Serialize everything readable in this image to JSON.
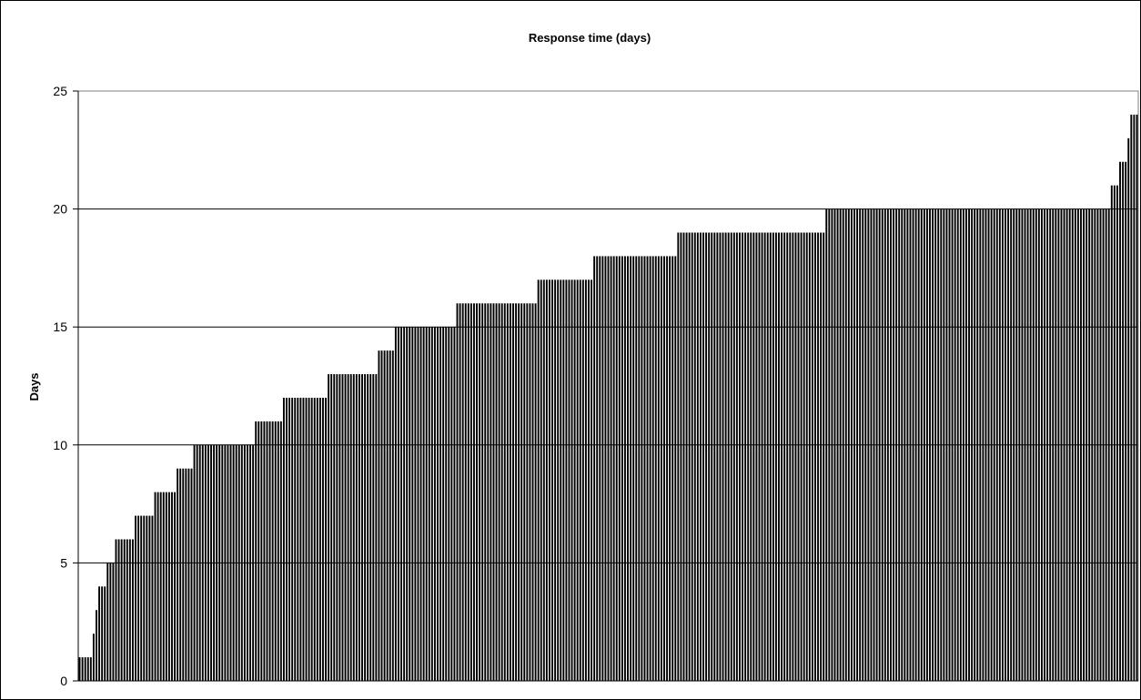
{
  "chart_data": {
    "type": "bar",
    "title": "Response time (days)",
    "xlabel": "",
    "ylabel": "Days",
    "ylim": [
      0,
      25
    ],
    "yticks": [
      0,
      5,
      10,
      15,
      20,
      25
    ],
    "grid": true,
    "bar_color": "#000000",
    "gridline_color": "#000000",
    "values": [
      1,
      1,
      1,
      1,
      1,
      2,
      3,
      4,
      4,
      4,
      5,
      5,
      5,
      6,
      6,
      6,
      6,
      6,
      6,
      6,
      7,
      7,
      7,
      7,
      7,
      7,
      7,
      8,
      8,
      8,
      8,
      8,
      8,
      8,
      8,
      9,
      9,
      9,
      9,
      9,
      9,
      10,
      10,
      10,
      10,
      10,
      10,
      10,
      10,
      10,
      10,
      10,
      10,
      10,
      10,
      10,
      10,
      10,
      10,
      10,
      10,
      10,
      10,
      11,
      11,
      11,
      11,
      11,
      11,
      11,
      11,
      11,
      11,
      12,
      12,
      12,
      12,
      12,
      12,
      12,
      12,
      12,
      12,
      12,
      12,
      12,
      12,
      12,
      12,
      13,
      13,
      13,
      13,
      13,
      13,
      13,
      13,
      13,
      13,
      13,
      13,
      13,
      13,
      13,
      13,
      13,
      13,
      14,
      14,
      14,
      14,
      14,
      14,
      15,
      15,
      15,
      15,
      15,
      15,
      15,
      15,
      15,
      15,
      15,
      15,
      15,
      15,
      15,
      15,
      15,
      15,
      15,
      15,
      15,
      15,
      16,
      16,
      16,
      16,
      16,
      16,
      16,
      16,
      16,
      16,
      16,
      16,
      16,
      16,
      16,
      16,
      16,
      16,
      16,
      16,
      16,
      16,
      16,
      16,
      16,
      16,
      16,
      16,
      16,
      17,
      17,
      17,
      17,
      17,
      17,
      17,
      17,
      17,
      17,
      17,
      17,
      17,
      17,
      17,
      17,
      17,
      17,
      17,
      17,
      18,
      18,
      18,
      18,
      18,
      18,
      18,
      18,
      18,
      18,
      18,
      18,
      18,
      18,
      18,
      18,
      18,
      18,
      18,
      18,
      18,
      18,
      18,
      18,
      18,
      18,
      18,
      18,
      18,
      18,
      19,
      19,
      19,
      19,
      19,
      19,
      19,
      19,
      19,
      19,
      19,
      19,
      19,
      19,
      19,
      19,
      19,
      19,
      19,
      19,
      19,
      19,
      19,
      19,
      19,
      19,
      19,
      19,
      19,
      19,
      19,
      19,
      19,
      19,
      19,
      19,
      19,
      19,
      19,
      19,
      19,
      19,
      19,
      19,
      19,
      19,
      19,
      19,
      19,
      19,
      19,
      19,
      19,
      20,
      20,
      20,
      20,
      20,
      20,
      20,
      20,
      20,
      20,
      20,
      20,
      20,
      20,
      20,
      20,
      20,
      20,
      20,
      20,
      20,
      20,
      20,
      20,
      20,
      20,
      20,
      20,
      20,
      20,
      20,
      20,
      20,
      20,
      20,
      20,
      20,
      20,
      20,
      20,
      20,
      20,
      20,
      20,
      20,
      20,
      20,
      20,
      20,
      20,
      20,
      20,
      20,
      20,
      20,
      20,
      20,
      20,
      20,
      20,
      20,
      20,
      20,
      20,
      20,
      20,
      20,
      20,
      20,
      20,
      20,
      20,
      20,
      20,
      20,
      20,
      20,
      20,
      20,
      20,
      20,
      20,
      20,
      20,
      20,
      20,
      20,
      20,
      20,
      20,
      20,
      20,
      20,
      20,
      20,
      20,
      20,
      20,
      20,
      20,
      20,
      20,
      21,
      21,
      21,
      22,
      22,
      22,
      23,
      24,
      24,
      24
    ]
  }
}
